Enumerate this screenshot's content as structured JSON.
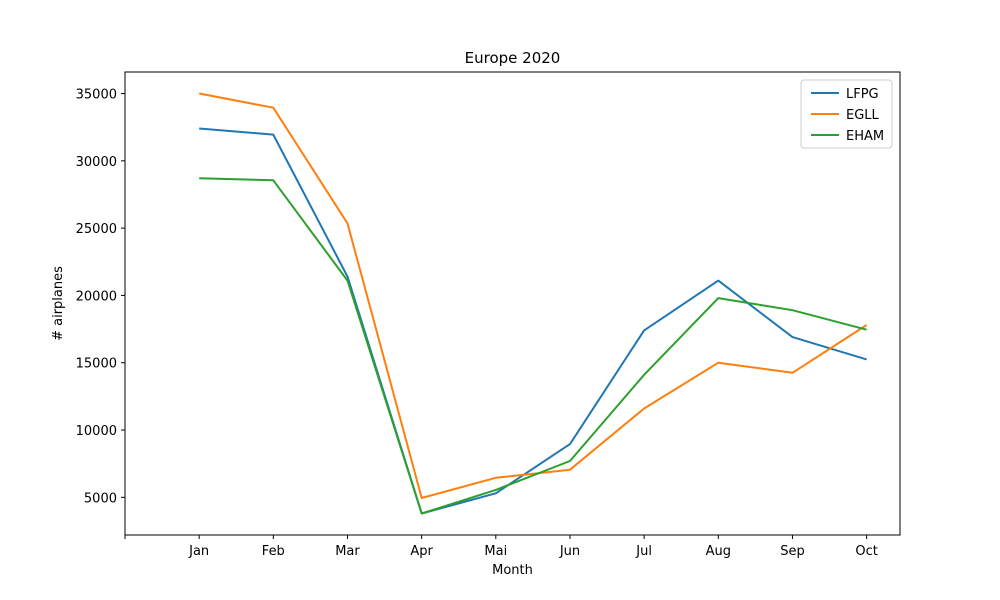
{
  "chart_data": {
    "type": "line",
    "title": "Europe 2020",
    "xlabel": "Month",
    "ylabel": "# airplanes",
    "categories": [
      "Jan",
      "Feb",
      "Mar",
      "Apr",
      "Mai",
      "Jun",
      "Jul",
      "Aug",
      "Sep",
      "Oct"
    ],
    "x_range": [
      -1,
      9.45
    ],
    "extra_x_ticks": [
      -1
    ],
    "ylim": [
      2200,
      36600
    ],
    "yticks": [
      5000,
      10000,
      15000,
      20000,
      25000,
      30000,
      35000
    ],
    "grid": false,
    "legend_position": "top-right",
    "series": [
      {
        "name": "LFPG",
        "color": "#1f77b4",
        "values": [
          32400,
          31950,
          21400,
          3800,
          5300,
          8950,
          17400,
          21100,
          16900,
          15250
        ]
      },
      {
        "name": "EGLL",
        "color": "#ff7f0e",
        "values": [
          35000,
          33950,
          25350,
          4950,
          6450,
          7050,
          11600,
          15000,
          14250,
          17800
        ]
      },
      {
        "name": "EHAM",
        "color": "#2ca02c",
        "values": [
          28700,
          28550,
          21100,
          3800,
          5550,
          7700,
          14100,
          19800,
          18900,
          17450
        ]
      }
    ]
  }
}
